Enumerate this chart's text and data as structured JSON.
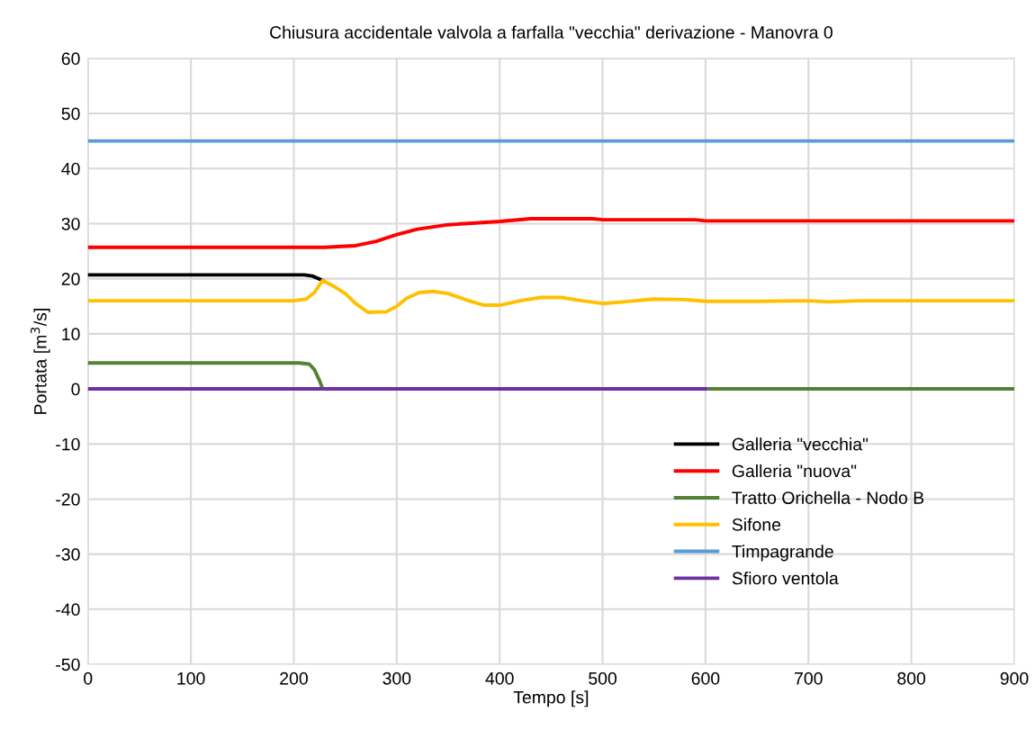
{
  "chart_data": {
    "type": "line",
    "title": "Chiusura accidentale valvola a farfalla \"vecchia\" derivazione - Manovra 0",
    "xlabel": "Tempo [s]",
    "ylabel": "Portata [m$^{3}$/s]",
    "xlim": [
      0,
      900
    ],
    "xticks": [
      0,
      100,
      200,
      300,
      400,
      500,
      600,
      700,
      800,
      900
    ],
    "ylim": [
      -50,
      60
    ],
    "yticks": [
      -50,
      -40,
      -30,
      -20,
      -10,
      0,
      10,
      20,
      30,
      40,
      50,
      60
    ],
    "grid": true,
    "legend": "bottom right",
    "marker": "none",
    "line_style": "solid",
    "series": [
      {
        "name": "Galleria \"vecchia\"",
        "color": "#000000",
        "x": [
          0,
          200,
          210,
          218,
          228
        ],
        "values": [
          20.7,
          20.7,
          20.7,
          20.5,
          19.7
        ]
      },
      {
        "name": "Galleria \"nuova\"",
        "color": "#ff0000",
        "x": [
          0,
          230,
          260,
          280,
          300,
          320,
          350,
          400,
          430,
          490,
          500,
          590,
          600,
          900
        ],
        "values": [
          25.7,
          25.7,
          26,
          26.8,
          28,
          29,
          29.8,
          30.4,
          30.9,
          30.9,
          30.7,
          30.7,
          30.5,
          30.5
        ]
      },
      {
        "name": "Tratto Orichella - Nodo B",
        "color": "#548235",
        "x": [
          0,
          205,
          215,
          220,
          225,
          228,
          900
        ],
        "values": [
          4.7,
          4.7,
          4.5,
          3.5,
          1.5,
          0,
          0
        ]
      },
      {
        "name": "Sifone",
        "color": "#ffc000",
        "x": [
          0,
          200,
          212,
          220,
          228,
          240,
          250,
          260,
          272,
          290,
          300,
          310,
          322,
          335,
          350,
          370,
          385,
          400,
          420,
          440,
          460,
          480,
          500,
          520,
          550,
          580,
          600,
          650,
          700,
          720,
          750,
          900
        ],
        "values": [
          16,
          16,
          16.3,
          17.5,
          19.7,
          18.5,
          17.3,
          15.5,
          13.9,
          14,
          15,
          16.5,
          17.5,
          17.7,
          17.3,
          16,
          15.2,
          15.2,
          16,
          16.6,
          16.6,
          16,
          15.5,
          15.8,
          16.3,
          16.2,
          15.9,
          15.9,
          16,
          15.8,
          16,
          16
        ]
      },
      {
        "name": "Timpagrande",
        "color": "#5b9bd5",
        "x": [
          0,
          900
        ],
        "values": [
          45,
          45
        ]
      },
      {
        "name": "Sfioro ventola",
        "color": "#7030a0",
        "x": [
          0,
          600
        ],
        "values": [
          0,
          0
        ]
      }
    ]
  }
}
